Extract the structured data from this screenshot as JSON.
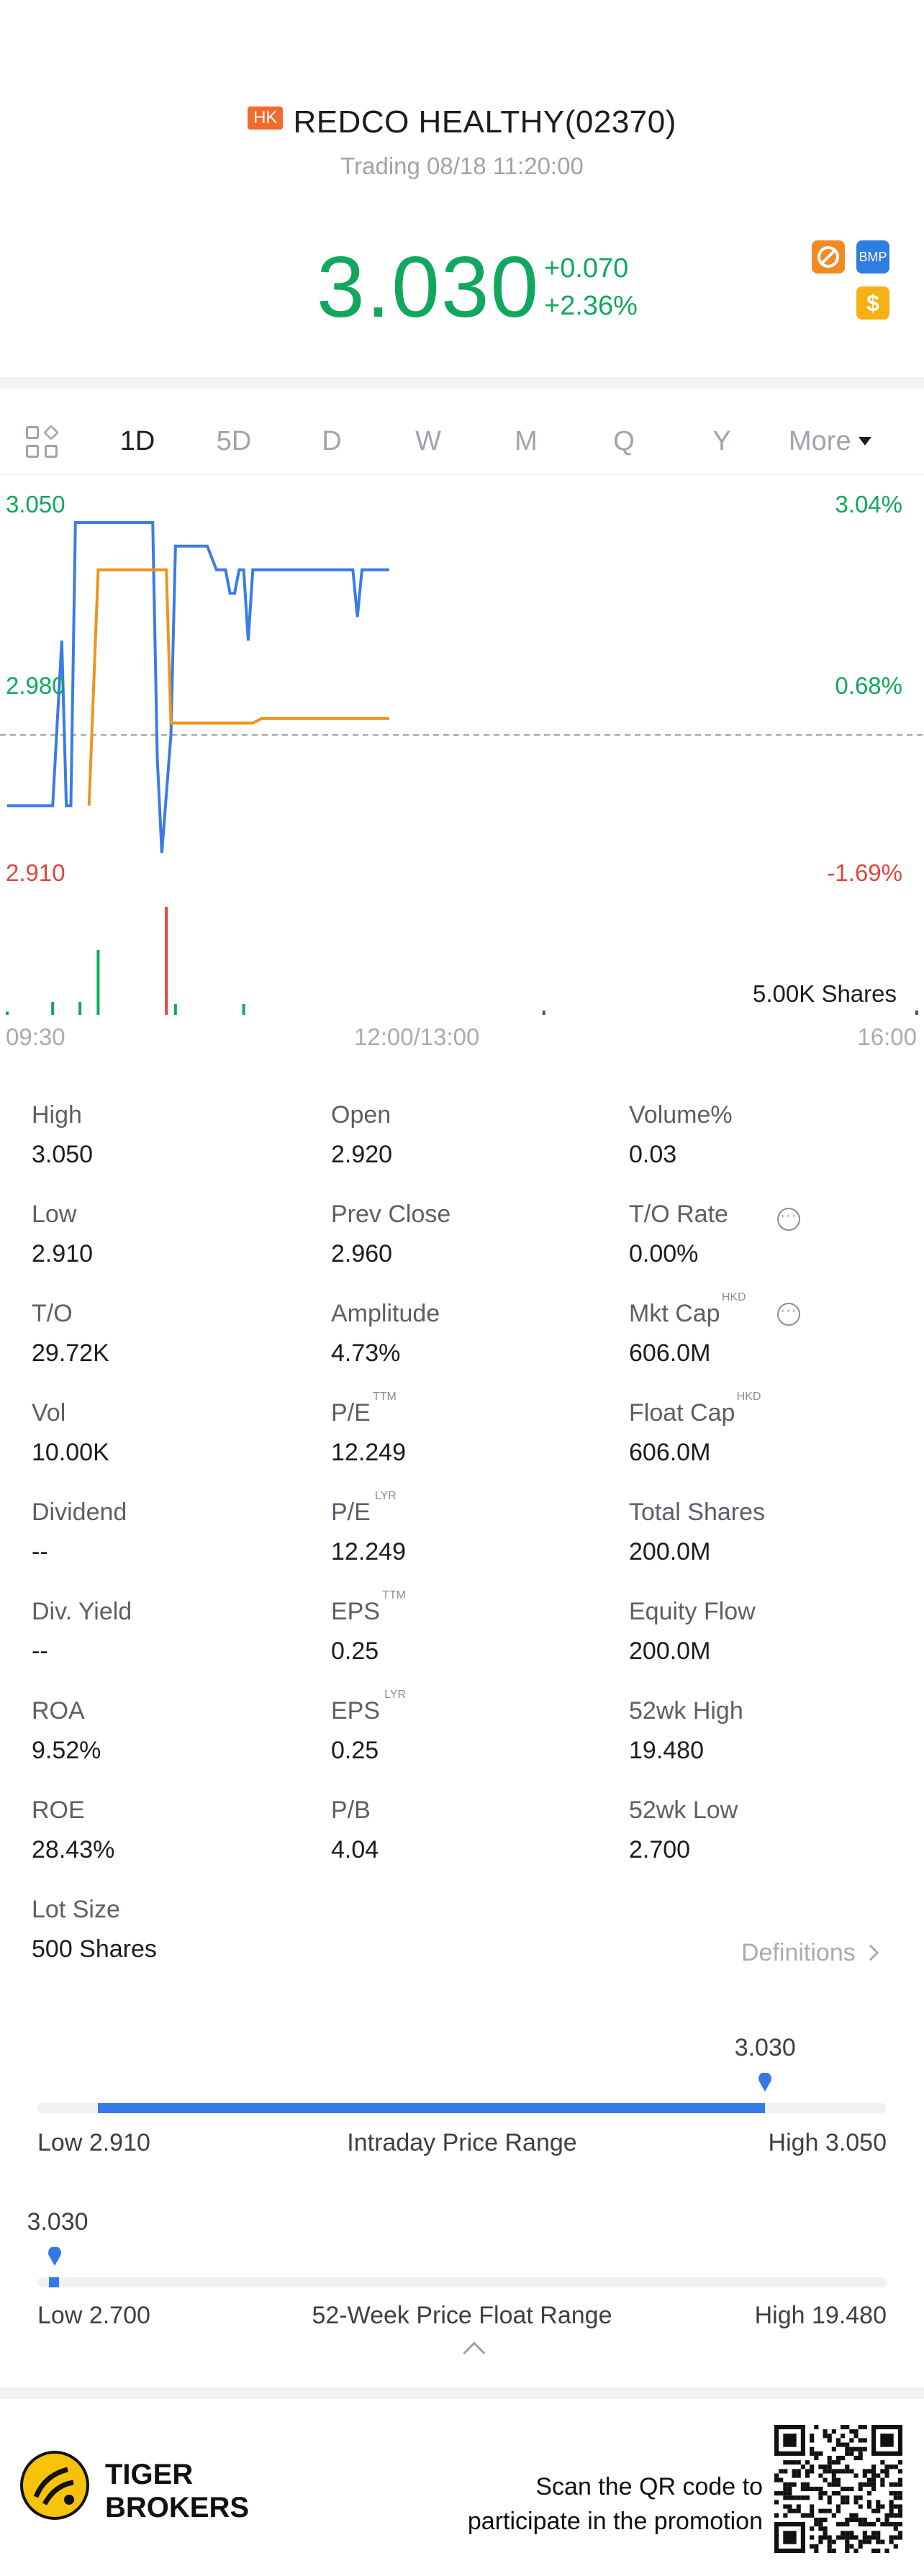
{
  "header": {
    "market_badge": "HK",
    "title": "REDCO HEALTHY(02370)",
    "status": "Trading 08/18 11:20:00",
    "price": "3.030",
    "change": "+0.070",
    "change_pct": "+2.36%",
    "badges": [
      {
        "icon": "no-short-icon",
        "color": "#f28a24"
      },
      {
        "label": "BMP",
        "color": "#2f7de1"
      },
      {
        "label": "$",
        "color": "#f5b015"
      }
    ]
  },
  "tabs": {
    "items": [
      "1D",
      "5D",
      "D",
      "W",
      "M",
      "Q",
      "Y"
    ],
    "active": "1D",
    "more": "More"
  },
  "chart_data": {
    "type": "line",
    "y_left_labels": [
      "3.050",
      "2.980",
      "2.910"
    ],
    "y_right_labels": [
      "3.04%",
      "0.68%",
      "-1.69%"
    ],
    "x_labels": [
      "09:30",
      "12:00/13:00",
      "16:00"
    ],
    "ylim": [
      2.91,
      3.05
    ],
    "prev_close": 2.96,
    "volume_label": "5.00K Shares",
    "series": [
      {
        "color": "#3b7be6",
        "points": [
          [
            0,
            2.93
          ],
          [
            0.05,
            2.93
          ],
          [
            0.06,
            3.0
          ],
          [
            0.065,
            2.93
          ],
          [
            0.07,
            2.93
          ],
          [
            0.075,
            3.05
          ],
          [
            0.16,
            3.05
          ],
          [
            0.165,
            2.95
          ],
          [
            0.17,
            2.91
          ],
          [
            0.18,
            2.96
          ],
          [
            0.185,
            3.04
          ],
          [
            0.22,
            3.04
          ],
          [
            0.23,
            3.03
          ],
          [
            0.24,
            3.03
          ],
          [
            0.245,
            3.02
          ],
          [
            0.25,
            3.02
          ],
          [
            0.255,
            3.03
          ],
          [
            0.26,
            3.03
          ],
          [
            0.265,
            3.0
          ],
          [
            0.27,
            3.03
          ],
          [
            0.38,
            3.03
          ],
          [
            0.385,
            3.01
          ],
          [
            0.39,
            3.03
          ],
          [
            0.42,
            3.03
          ]
        ]
      },
      {
        "color": "#f0931f",
        "points": [
          [
            0.09,
            2.93
          ],
          [
            0.1,
            3.03
          ],
          [
            0.175,
            3.03
          ],
          [
            0.18,
            2.965
          ],
          [
            0.27,
            2.965
          ],
          [
            0.28,
            2.967
          ],
          [
            0.42,
            2.967
          ]
        ]
      }
    ],
    "volumes": [
      {
        "t": 0.0,
        "v": 0.03,
        "color": "#11a75f"
      },
      {
        "t": 0.05,
        "v": 0.12,
        "color": "#11a75f"
      },
      {
        "t": 0.08,
        "v": 0.12,
        "color": "#11a75f"
      },
      {
        "t": 0.1,
        "v": 0.6,
        "color": "#11a75f"
      },
      {
        "t": 0.175,
        "v": 1.0,
        "color": "#e2443b"
      },
      {
        "t": 0.185,
        "v": 0.1,
        "color": "#11a75f"
      },
      {
        "t": 0.26,
        "v": 0.1,
        "color": "#11a75f"
      },
      {
        "t": 0.59,
        "v": 0.04,
        "color": "#555555"
      },
      {
        "t": 1.0,
        "v": 0.04,
        "color": "#555555"
      }
    ]
  },
  "stats": [
    {
      "label": "High",
      "value": "3.050",
      "sup": ""
    },
    {
      "label": "Open",
      "value": "2.920",
      "sup": ""
    },
    {
      "label": "Volume%",
      "value": "0.03",
      "sup": ""
    },
    {
      "label": "Low",
      "value": "2.910",
      "sup": ""
    },
    {
      "label": "Prev Close",
      "value": "2.960",
      "sup": ""
    },
    {
      "label": "T/O Rate",
      "value": "0.00%",
      "sup": ""
    },
    {
      "label": "T/O",
      "value": "29.72K",
      "sup": ""
    },
    {
      "label": "Amplitude",
      "value": "4.73%",
      "sup": ""
    },
    {
      "label": "Mkt Cap",
      "value": "606.0M",
      "sup": "HKD"
    },
    {
      "label": "Vol",
      "value": "10.00K",
      "sup": ""
    },
    {
      "label": "P/E",
      "value": "12.249",
      "sup": "TTM"
    },
    {
      "label": "Float Cap",
      "value": "606.0M",
      "sup": "HKD"
    },
    {
      "label": "Dividend",
      "value": "--",
      "sup": ""
    },
    {
      "label": "P/E",
      "value": "12.249",
      "sup": "LYR"
    },
    {
      "label": "Total Shares",
      "value": "200.0M",
      "sup": ""
    },
    {
      "label": "Div. Yield",
      "value": "--",
      "sup": ""
    },
    {
      "label": "EPS",
      "value": "0.25",
      "sup": "TTM"
    },
    {
      "label": "Equity Flow",
      "value": "200.0M",
      "sup": ""
    },
    {
      "label": "ROA",
      "value": "9.52%",
      "sup": ""
    },
    {
      "label": "EPS",
      "value": "0.25",
      "sup": "LYR"
    },
    {
      "label": "52wk High",
      "value": "19.480",
      "sup": ""
    },
    {
      "label": "ROE",
      "value": "28.43%",
      "sup": ""
    },
    {
      "label": "P/B",
      "value": "4.04",
      "sup": ""
    },
    {
      "label": "52wk Low",
      "value": "2.700",
      "sup": ""
    },
    {
      "label": "Lot Size",
      "value": "500 Shares",
      "sup": ""
    }
  ],
  "definitions_link": "Definitions",
  "intraday_range": {
    "current": "3.030",
    "low": "Low 2.910",
    "title": "Intraday Price Range",
    "high": "High 3.050",
    "position": 0.857
  },
  "week52_range": {
    "current": "3.030",
    "low": "Low 2.700",
    "title": "52-Week Price Float Range",
    "high": "High 19.480",
    "position": 0.02
  },
  "footer": {
    "brand_line1": "TIGER",
    "brand_line2": "BROKERS",
    "promo_line1": "Scan the QR code to",
    "promo_line2": "participate in the promotion"
  }
}
